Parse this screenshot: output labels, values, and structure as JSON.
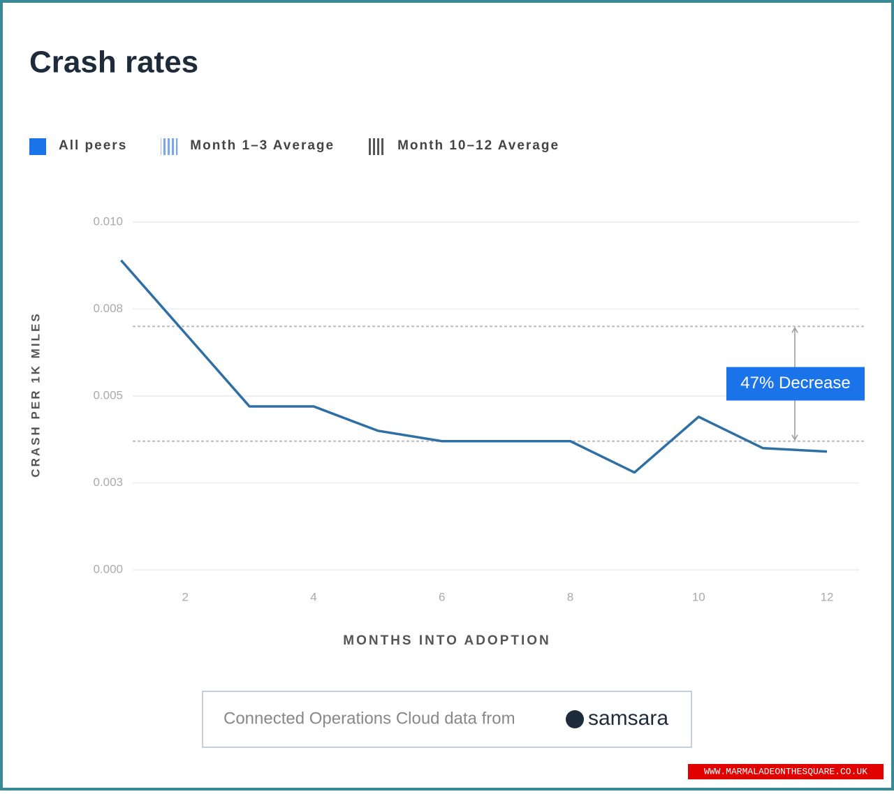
{
  "chart_data": {
    "type": "line",
    "title": "Crash rates",
    "x": [
      1,
      2,
      3,
      4,
      5,
      6,
      7,
      8,
      9,
      10,
      11,
      12
    ],
    "series": [
      {
        "name": "All peers",
        "color": "#2f6fa3",
        "legend_color": "#1a73e8",
        "values": [
          0.0089,
          0.0068,
          0.0047,
          0.0047,
          0.004,
          0.0037,
          0.0037,
          0.0037,
          0.0028,
          0.0044,
          0.0035,
          0.0034
        ]
      }
    ],
    "reference_lines": [
      {
        "name": "Month 1–3 Average",
        "value": 0.007,
        "color": "#7aa7e8"
      },
      {
        "name": "Month 10–12 Average",
        "value": 0.0037,
        "color": "#555555"
      }
    ],
    "annotation": "47% Decrease",
    "xlim": [
      0.8,
      12.5
    ],
    "xticks": [
      2,
      4,
      6,
      8,
      10,
      12
    ],
    "ylim": [
      0,
      0.01
    ],
    "yticks": [
      {
        "value": 0,
        "label": "0.000"
      },
      {
        "value": 0.0025,
        "label": "0.003"
      },
      {
        "value": 0.005,
        "label": "0.005"
      },
      {
        "value": 0.0075,
        "label": "0.008"
      },
      {
        "value": 0.01,
        "label": "0.010"
      }
    ],
    "xlabel": "MONTHS INTO ADOPTION",
    "ylabel": "CRASH PER 1K MILES",
    "grid": true
  },
  "footer": {
    "text": "Connected Operations Cloud data from",
    "brand": "samsara"
  },
  "watermark": "WWW.MARMALADEONTHESQUARE.CO.UK"
}
